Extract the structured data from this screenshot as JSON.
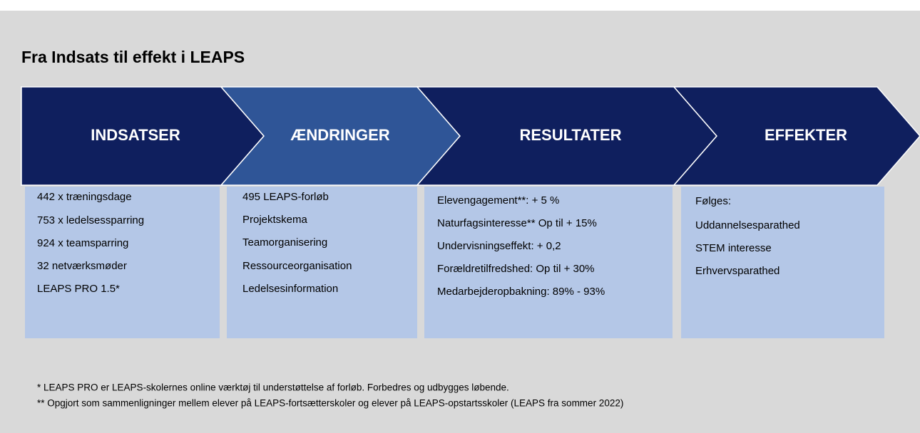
{
  "title": "Fra Indsats til effekt i LEAPS",
  "stages": [
    {
      "label": "INDSATSER",
      "items": [
        "442 x træningsdage",
        "753 x ledelsessparring",
        "924 x teamsparring",
        "32 netværksmøder",
        "LEAPS PRO 1.5*"
      ]
    },
    {
      "label": "ÆNDRINGER",
      "items": [
        "495 LEAPS-forløb",
        "Projektskema",
        "Teamorganisering",
        "Ressourceorganisation",
        "Ledelsesinformation"
      ]
    },
    {
      "label": "RESULTATER",
      "items": [
        "Elevengagement**:  + 5 %",
        "Naturfagsinteresse** Op til + 15%",
        "Undervisningseffekt:  + 0,2",
        "Forældretilfredshed: Op til + 30%",
        "Medarbejderopbakning: 89% - 93%"
      ]
    },
    {
      "label": "EFFEKTER",
      "items": [
        "Følges:",
        "Uddannelsesparathed",
        "STEM interesse",
        "Erhvervsparathed"
      ]
    }
  ],
  "footnotes": [
    "* LEAPS PRO er LEAPS-skolernes online værktøj til understøttelse af forløb. Forbedres og udbygges løbende.",
    "** Opgjort som sammenligninger mellem elever på LEAPS-fortsætterskoler og elever på LEAPS-opstartsskoler (LEAPS fra sommer 2022)"
  ]
}
